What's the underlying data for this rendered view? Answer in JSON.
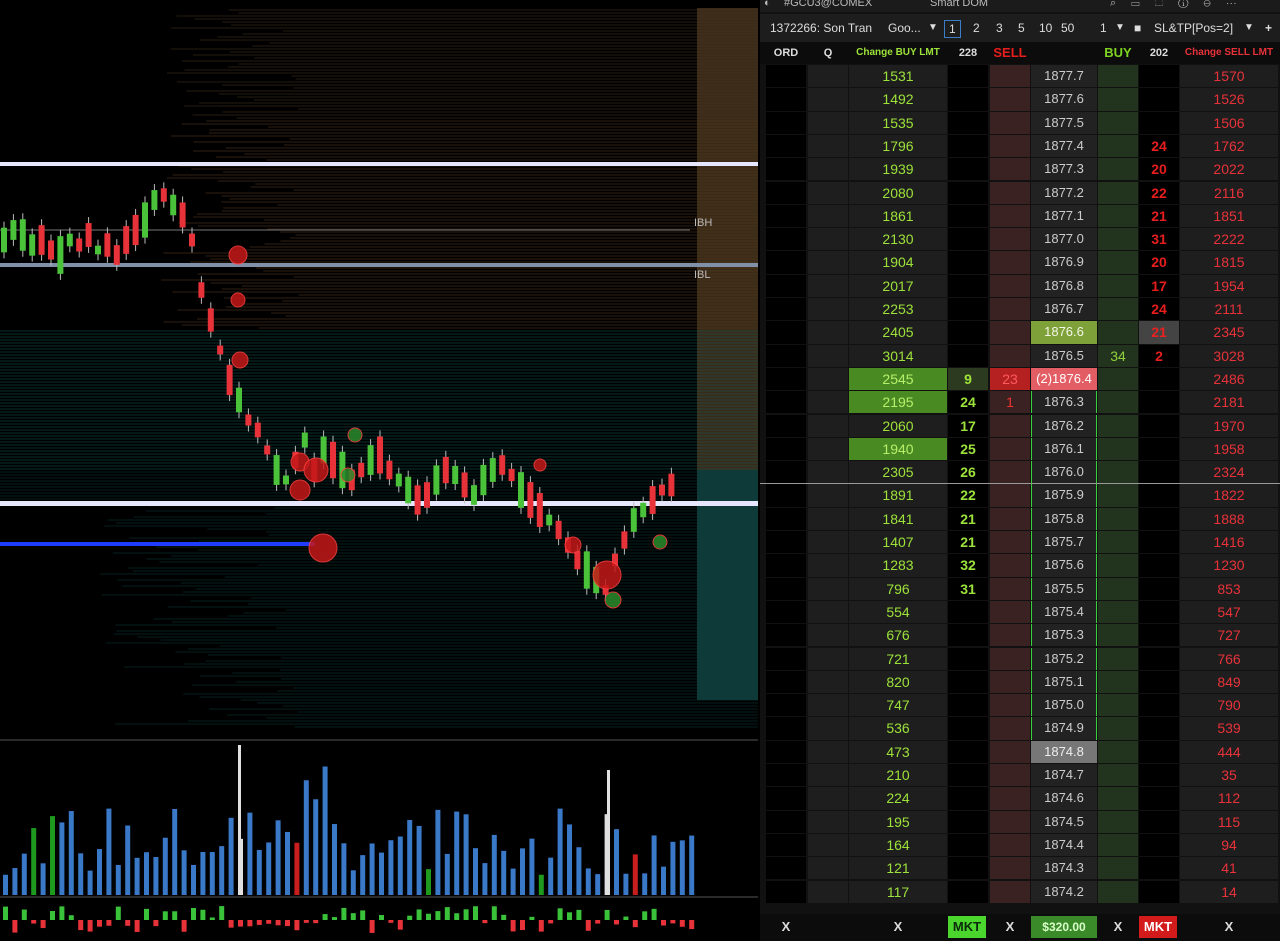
{
  "window": {
    "title": "#GCU3@COMEX",
    "subtitle": "Smart DOM"
  },
  "toolbar": {
    "account": "1372266: Son Tran",
    "instrument": "Goo...",
    "qty_presets": [
      "1",
      "2",
      "3",
      "5",
      "10",
      "50"
    ],
    "selected_qty": "1",
    "order_qty": "1",
    "strategy": "SL&TP[Pos=2]",
    "add_label": "+"
  },
  "chart": {
    "labels": {
      "ibh": "IBH",
      "ibl": "IBL"
    }
  },
  "dom": {
    "headers": {
      "ord": "ORD",
      "q": "Q",
      "change_buy": "Change BUY LMT",
      "buy_total": "228",
      "sell": "SELL",
      "buy": "BUY",
      "sell_total": "202",
      "change_sell": "Change SELL LMT"
    },
    "colors": {
      "green": "#9de23a",
      "red": "#e8323a",
      "ask_bg": "#7fa13a",
      "bid_bg": "#e35d64"
    },
    "rows": [
      {
        "cb": "1531",
        "bq": "",
        "sell": "",
        "price": "1877.7",
        "buy": "",
        "sq": "",
        "cs": "1570"
      },
      {
        "cb": "1492",
        "bq": "",
        "sell": "",
        "price": "1877.6",
        "buy": "",
        "sq": "",
        "cs": "1526"
      },
      {
        "cb": "1535",
        "bq": "",
        "sell": "",
        "price": "1877.5",
        "buy": "",
        "sq": "",
        "cs": "1506"
      },
      {
        "cb": "1796",
        "bq": "",
        "sell": "",
        "price": "1877.4",
        "buy": "",
        "sq": "24",
        "cs": "1762"
      },
      {
        "cb": "1939",
        "bq": "",
        "sell": "",
        "price": "1877.3",
        "buy": "",
        "sq": "20",
        "cs": "2022"
      },
      {
        "cb": "2080",
        "bq": "",
        "sell": "",
        "price": "1877.2",
        "buy": "",
        "sq": "22",
        "cs": "2116"
      },
      {
        "cb": "1861",
        "bq": "",
        "sell": "",
        "price": "1877.1",
        "buy": "",
        "sq": "21",
        "cs": "1851"
      },
      {
        "cb": "2130",
        "bq": "",
        "sell": "",
        "price": "1877.0",
        "buy": "",
        "sq": "31",
        "cs": "2222"
      },
      {
        "cb": "1904",
        "bq": "",
        "sell": "",
        "price": "1876.9",
        "buy": "",
        "sq": "20",
        "cs": "1815"
      },
      {
        "cb": "2017",
        "bq": "",
        "sell": "",
        "price": "1876.8",
        "buy": "",
        "sq": "17",
        "cs": "1954"
      },
      {
        "cb": "2253",
        "bq": "",
        "sell": "",
        "price": "1876.7",
        "buy": "",
        "sq": "24",
        "cs": "2111"
      },
      {
        "cb": "2405",
        "bq": "",
        "sell": "",
        "price": "1876.6",
        "buy": "",
        "sq": "21",
        "cs": "2345",
        "state": "ask"
      },
      {
        "cb": "3014",
        "bq": "",
        "sell": "",
        "price": "1876.5",
        "buy": "34",
        "sq": "2",
        "cs": "3028"
      },
      {
        "cb": "2545",
        "bq": "9",
        "sell": "23",
        "price": "(2)1876.4",
        "buy": "",
        "sq": "",
        "cs": "2486",
        "state": "bid"
      },
      {
        "cb": "2195",
        "bq": "24",
        "sell": "1",
        "price": "1876.3",
        "buy": "",
        "sq": "",
        "cs": "2181",
        "hl": true
      },
      {
        "cb": "2060",
        "bq": "17",
        "sell": "",
        "price": "1876.2",
        "buy": "",
        "sq": "",
        "cs": "1970"
      },
      {
        "cb": "1940",
        "bq": "25",
        "sell": "",
        "price": "1876.1",
        "buy": "",
        "sq": "",
        "cs": "1958",
        "hl": true
      },
      {
        "cb": "2305",
        "bq": "26",
        "sell": "",
        "price": "1876.0",
        "buy": "",
        "sq": "",
        "cs": "2324"
      },
      {
        "cb": "1891",
        "bq": "22",
        "sell": "",
        "price": "1875.9",
        "buy": "",
        "sq": "",
        "cs": "1822"
      },
      {
        "cb": "1841",
        "bq": "21",
        "sell": "",
        "price": "1875.8",
        "buy": "",
        "sq": "",
        "cs": "1888"
      },
      {
        "cb": "1407",
        "bq": "21",
        "sell": "",
        "price": "1875.7",
        "buy": "",
        "sq": "",
        "cs": "1416"
      },
      {
        "cb": "1283",
        "bq": "32",
        "sell": "",
        "price": "1875.6",
        "buy": "",
        "sq": "",
        "cs": "1230"
      },
      {
        "cb": "796",
        "bq": "31",
        "sell": "",
        "price": "1875.5",
        "buy": "",
        "sq": "",
        "cs": "853"
      },
      {
        "cb": "554",
        "bq": "",
        "sell": "",
        "price": "1875.4",
        "buy": "",
        "sq": "",
        "cs": "547"
      },
      {
        "cb": "676",
        "bq": "",
        "sell": "",
        "price": "1875.3",
        "buy": "",
        "sq": "",
        "cs": "727"
      },
      {
        "cb": "721",
        "bq": "",
        "sell": "",
        "price": "1875.2",
        "buy": "",
        "sq": "",
        "cs": "766"
      },
      {
        "cb": "820",
        "bq": "",
        "sell": "",
        "price": "1875.1",
        "buy": "",
        "sq": "",
        "cs": "849"
      },
      {
        "cb": "747",
        "bq": "",
        "sell": "",
        "price": "1875.0",
        "buy": "",
        "sq": "",
        "cs": "790"
      },
      {
        "cb": "536",
        "bq": "",
        "sell": "",
        "price": "1874.9",
        "buy": "",
        "sq": "",
        "cs": "539"
      },
      {
        "cb": "473",
        "bq": "",
        "sell": "",
        "price": "1874.8",
        "buy": "",
        "sq": "",
        "cs": "444",
        "state": "last"
      },
      {
        "cb": "210",
        "bq": "",
        "sell": "",
        "price": "1874.7",
        "buy": "",
        "sq": "",
        "cs": "35"
      },
      {
        "cb": "224",
        "bq": "",
        "sell": "",
        "price": "1874.6",
        "buy": "",
        "sq": "",
        "cs": "112"
      },
      {
        "cb": "195",
        "bq": "",
        "sell": "",
        "price": "1874.5",
        "buy": "",
        "sq": "",
        "cs": "115"
      },
      {
        "cb": "164",
        "bq": "",
        "sell": "",
        "price": "1874.4",
        "buy": "",
        "sq": "",
        "cs": "94"
      },
      {
        "cb": "121",
        "bq": "",
        "sell": "",
        "price": "1874.3",
        "buy": "",
        "sq": "",
        "cs": "41"
      },
      {
        "cb": "117",
        "bq": "",
        "sell": "",
        "price": "1874.2",
        "buy": "",
        "sq": "",
        "cs": "14"
      }
    ],
    "footer": {
      "x1": "X",
      "x2": "X",
      "mkt_buy": "MKT",
      "x3": "X",
      "pnl": "$320.00",
      "x4": "X",
      "mkt_sell": "MKT",
      "x5": "X"
    }
  }
}
